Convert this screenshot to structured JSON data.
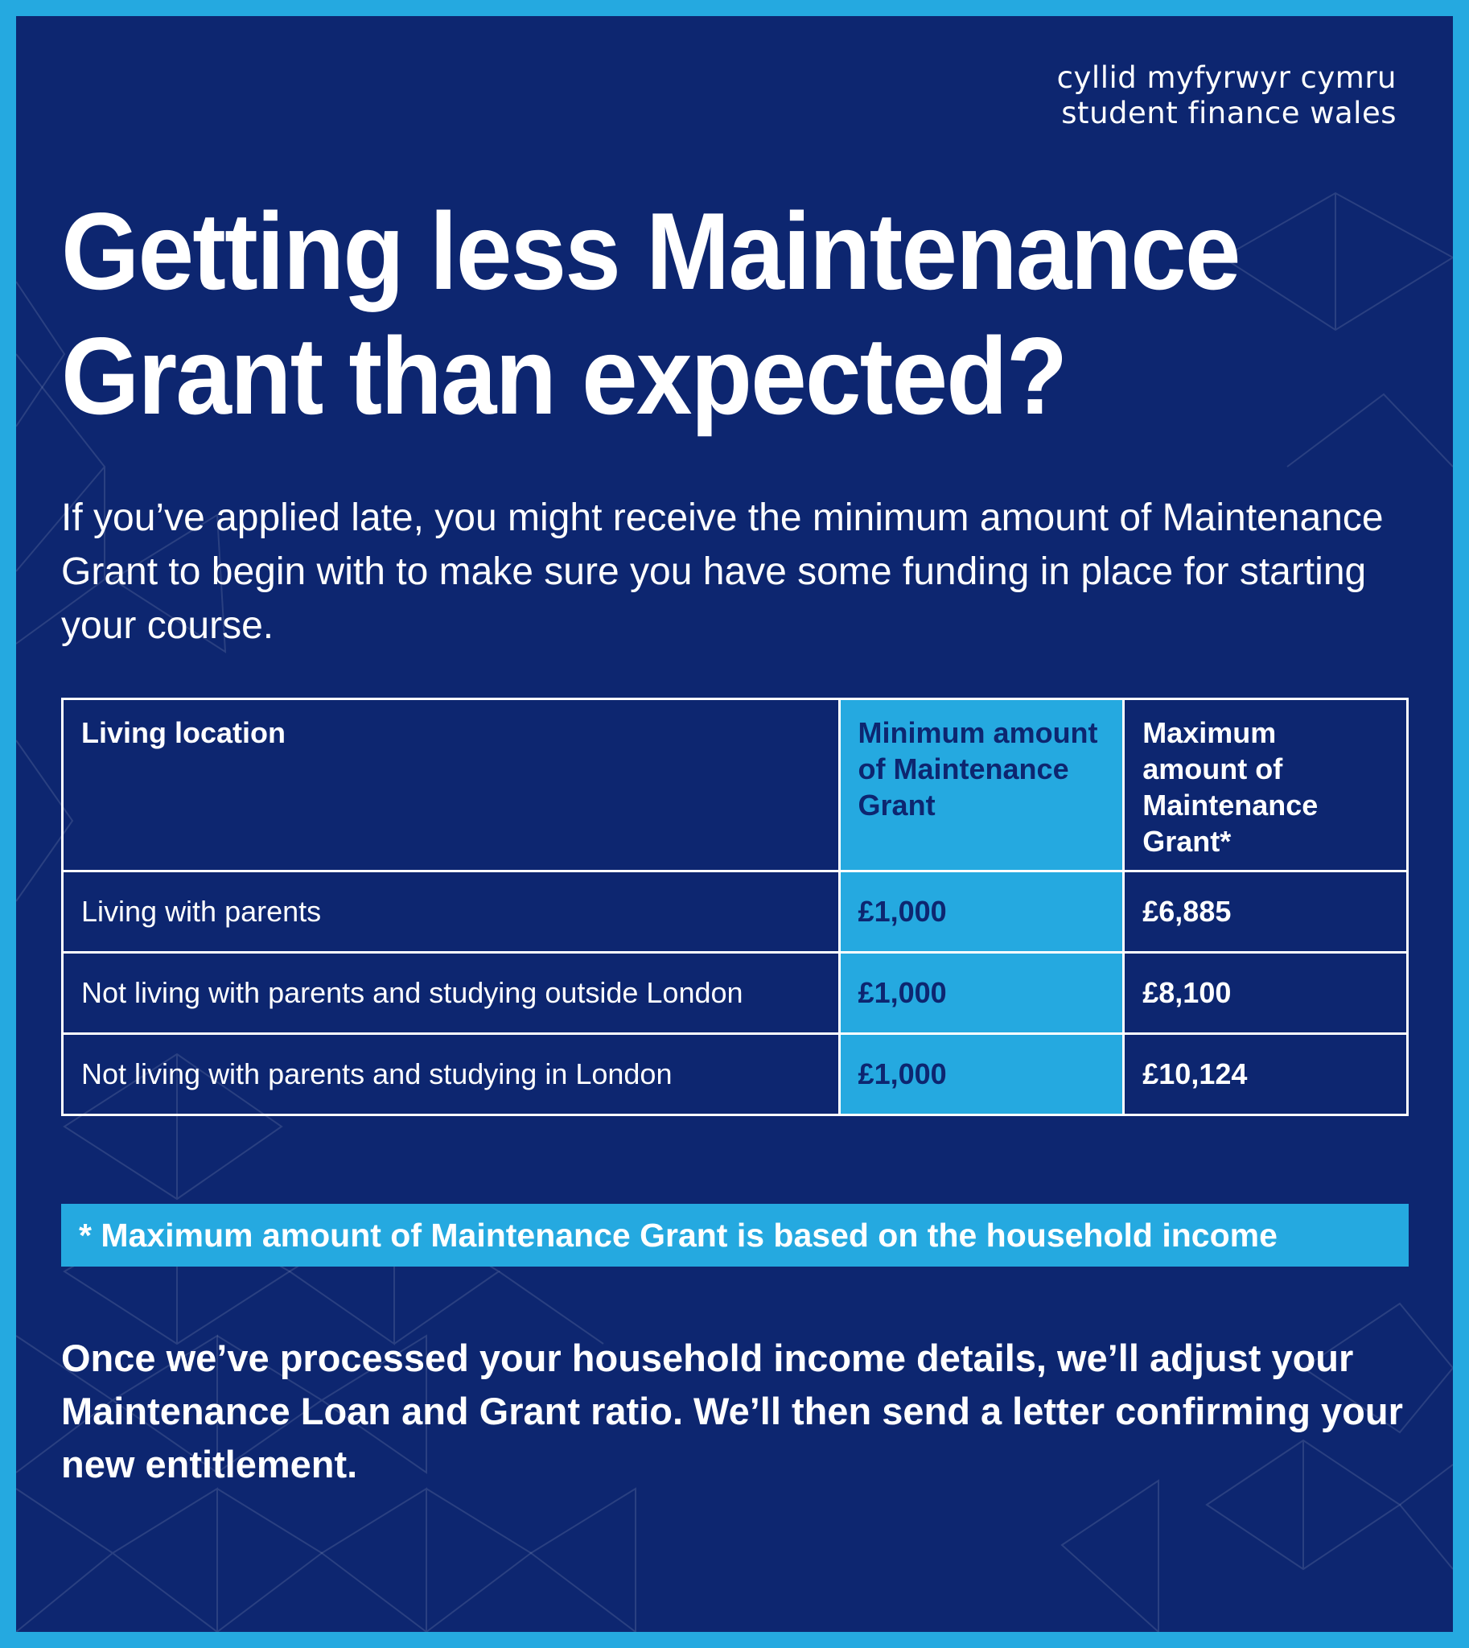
{
  "logo": {
    "line1": "cyllid myfyrwyr cymru",
    "line2": "student finance wales"
  },
  "title": {
    "line1": "Getting less Maintenance",
    "line2": "Grant than expected?"
  },
  "intro": "If you’ve applied late, you might receive the minimum amount of Maintenance Grant to begin with to make sure you have some funding in place for starting your course.",
  "table": {
    "headers": {
      "location": "Living location",
      "minimum": "Minimum amount of Maintenance Grant",
      "maximum": "Maximum amount of Maintenance Grant*"
    },
    "rows": [
      {
        "location": "Living with parents",
        "minimum": "£1,000",
        "maximum": "£6,885"
      },
      {
        "location": "Not living with parents and studying outside London",
        "minimum": "£1,000",
        "maximum": "£8,100"
      },
      {
        "location": "Not living with parents and studying in London",
        "minimum": "£1,000",
        "maximum": "£10,124"
      }
    ]
  },
  "note": "* Maximum amount of Maintenance Grant is based on the household income",
  "closing": "Once we’ve processed your household income details, we’ll adjust your Maintenance Loan and Grant ratio. We’ll then send a letter confirming your new entitlement.",
  "colors": {
    "background": "#0d2670",
    "accent": "#25a9e0",
    "text": "#ffffff"
  }
}
